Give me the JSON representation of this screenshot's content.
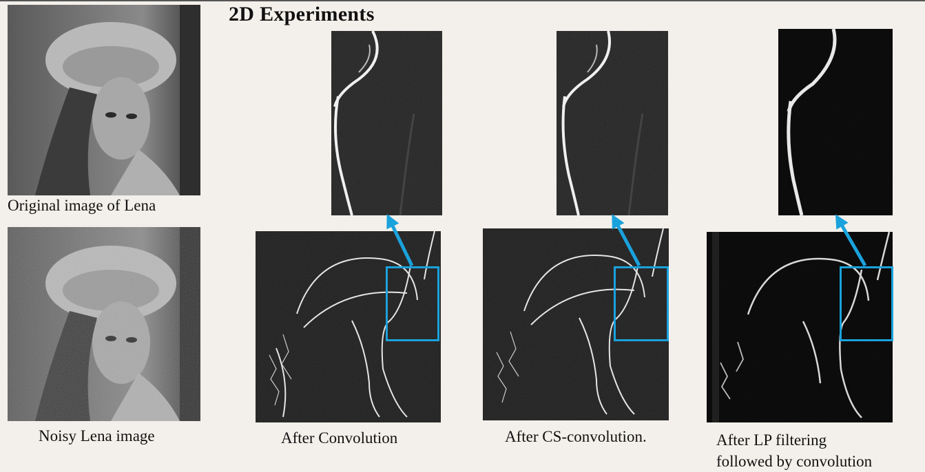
{
  "slide": {
    "title": "2D Experiments"
  },
  "captions": {
    "original": "Original image of Lena",
    "noisy": "Noisy Lena image",
    "conv": "After Convolution",
    "cs_conv": "After CS-convolution.",
    "lp_line1": "After LP filtering",
    "lp_line2": "followed by convolution"
  },
  "colors": {
    "highlight": "#1aa2dc",
    "background": "#f3f0eb"
  }
}
